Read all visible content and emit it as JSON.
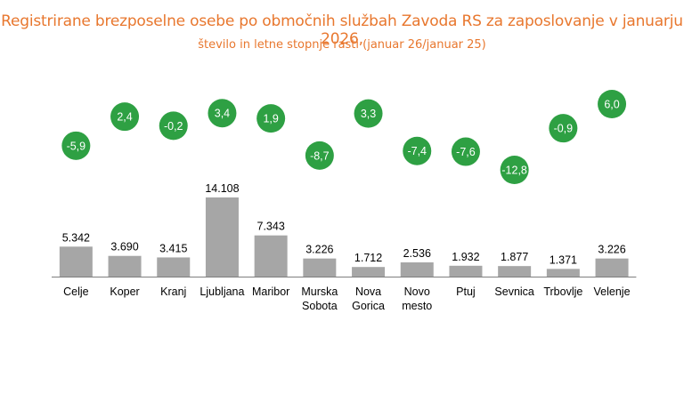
{
  "title": "Registrirane brezposelne osebe po območnih službah Zavoda RS za zaposlovanje v januarju 2026,",
  "subtitle": "število in letne stopnje rasti (januar 26/januar 25)",
  "colors": {
    "title": "#e8772e",
    "bar": "#a6a6a6",
    "bubble": "#2ea043",
    "bubble_text": "#ffffff",
    "axis": "#7f7f7f"
  },
  "chart_data": {
    "type": "bar",
    "categories": [
      "Celje",
      "Koper",
      "Kranj",
      "Ljubljana",
      "Maribor",
      "Murska Sobota",
      "Nova Gorica",
      "Novo mesto",
      "Ptuj",
      "Sevnica",
      "Trbovlje",
      "Velenje"
    ],
    "category_lines": [
      [
        "Celje"
      ],
      [
        "Koper"
      ],
      [
        "Kranj"
      ],
      [
        "Ljubljana"
      ],
      [
        "Maribor"
      ],
      [
        "Murska",
        "Sobota"
      ],
      [
        "Nova",
        "Gorica"
      ],
      [
        "Novo",
        "mesto"
      ],
      [
        "Ptuj"
      ],
      [
        "Sevnica"
      ],
      [
        "Trbovlje"
      ],
      [
        "Velenje"
      ]
    ],
    "series": [
      {
        "values": [
          5342,
          3690,
          3415,
          14108,
          7343,
          3226,
          1712,
          2536,
          1932,
          1877,
          1371,
          3226
        ],
        "labels": [
          "5.342",
          "3.690",
          "3.415",
          "14.108",
          "7.343",
          "3.226",
          "1.712",
          "2.536",
          "1.932",
          "1.877",
          "1.371",
          "3.226"
        ]
      },
      {
        "values": [
          -5.9,
          2.4,
          -0.2,
          3.4,
          1.9,
          -8.7,
          3.3,
          -7.4,
          -7.6,
          -12.8,
          -0.9,
          6.0
        ],
        "labels": [
          "-5,9",
          "2,4",
          "-0,2",
          "3,4",
          "1,9",
          "-8,7",
          "3,3",
          "-7,4",
          "-7,6",
          "-12,8",
          "-0,9",
          "6,0"
        ]
      }
    ]
  }
}
